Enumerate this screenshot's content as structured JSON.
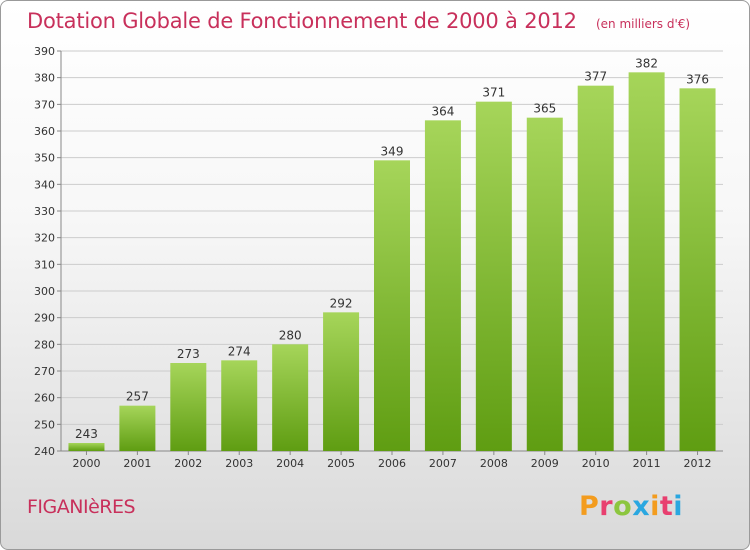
{
  "header": {
    "title": "Dotation Globale de Fonctionnement de 2000 à 2012",
    "subtitle": "(en milliers d'€)"
  },
  "footer": {
    "commune": "FIGANIèRES",
    "logo_letters": [
      "P",
      "r",
      "o",
      "x",
      "i",
      "t",
      "i"
    ],
    "logo_colors": [
      "#f39c1e",
      "#e83f6f",
      "#8cc63f",
      "#2aa7e0",
      "#f39c1e",
      "#e83f6f",
      "#2aa7e0"
    ]
  },
  "colors": {
    "bar_top": "#a6d55a",
    "bar_bottom": "#5f9d12",
    "grid": "#cccccc",
    "text": "#333333",
    "accent": "#c8305b"
  },
  "chart_data": {
    "type": "bar",
    "title": "Dotation Globale de Fonctionnement de 2000 à 2012",
    "subtitle": "(en milliers d'€)",
    "categories": [
      "2000",
      "2001",
      "2002",
      "2003",
      "2004",
      "2005",
      "2006",
      "2007",
      "2008",
      "2009",
      "2010",
      "2011",
      "2012"
    ],
    "values": [
      243,
      257,
      273,
      274,
      280,
      292,
      349,
      364,
      371,
      365,
      377,
      382,
      376
    ],
    "ylim": [
      240,
      390
    ],
    "yticks": [
      240,
      250,
      260,
      270,
      280,
      290,
      300,
      310,
      320,
      330,
      340,
      350,
      360,
      370,
      380,
      390
    ],
    "grid": true,
    "data_labels": true
  }
}
